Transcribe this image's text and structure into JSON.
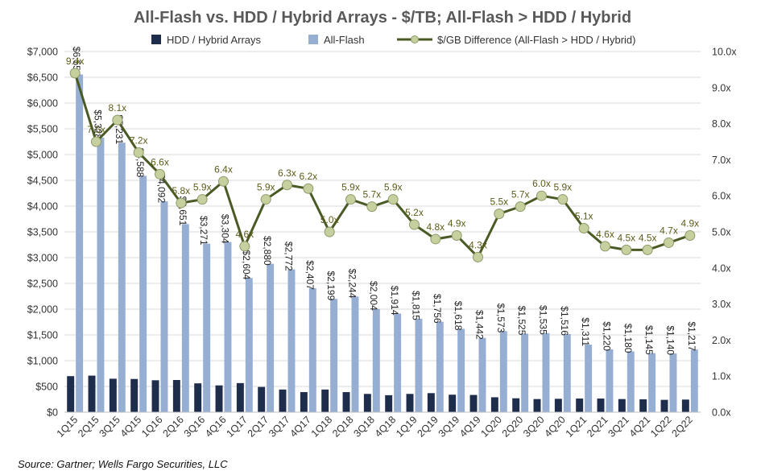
{
  "chart_data": {
    "type": "bar",
    "title": "All-Flash vs. HDD / Hybrid Arrays - $/TB; All-Flash > HDD / Hybrid",
    "source": "Source: Gartner; Wells Fargo Securities, LLC",
    "categories": [
      "1Q15",
      "2Q15",
      "3Q15",
      "4Q15",
      "1Q16",
      "2Q16",
      "3Q16",
      "4Q16",
      "1Q17",
      "2Q17",
      "3Q17",
      "4Q17",
      "1Q18",
      "2Q18",
      "3Q18",
      "4Q18",
      "1Q19",
      "2Q19",
      "3Q19",
      "4Q19",
      "1Q20",
      "2Q20",
      "3Q20",
      "4Q20",
      "1Q21",
      "2Q21",
      "3Q21",
      "4Q21",
      "1Q22",
      "2Q22"
    ],
    "y_left": {
      "min": 0,
      "max": 7000,
      "step": 500,
      "tick_labels": [
        "$0",
        "$500",
        "$1,000",
        "$1,500",
        "$2,000",
        "$2,500",
        "$3,000",
        "$3,500",
        "$4,000",
        "$4,500",
        "$5,000",
        "$5,500",
        "$6,000",
        "$6,500",
        "$7,000"
      ]
    },
    "y_right": {
      "min": 0,
      "max": 10,
      "step": 1,
      "tick_labels": [
        "0.0x",
        "1.0x",
        "2.0x",
        "3.0x",
        "4.0x",
        "5.0x",
        "6.0x",
        "7.0x",
        "8.0x",
        "9.0x",
        "10.0x"
      ]
    },
    "legend_position": "top",
    "series": [
      {
        "name": "HDD / Hybrid Arrays",
        "kind": "bar",
        "axis": "left",
        "color": "#1f2d4d",
        "values": [
          700,
          710,
          650,
          645,
          620,
          625,
          560,
          520,
          565,
          490,
          440,
          390,
          440,
          390,
          355,
          330,
          355,
          370,
          340,
          335,
          290,
          270,
          255,
          260,
          265,
          265,
          255,
          250,
          240,
          245
        ]
      },
      {
        "name": "All-Flash",
        "kind": "bar",
        "axis": "left",
        "color": "#97aed3",
        "values": [
          6555,
          5328,
          5231,
          4588,
          4092,
          3651,
          3271,
          3304,
          2604,
          2880,
          2772,
          2407,
          2199,
          2244,
          2004,
          1914,
          1815,
          1756,
          1618,
          1442,
          1573,
          1525,
          1535,
          1516,
          1311,
          1220,
          1180,
          1145,
          1140,
          1217
        ],
        "labels": [
          "$6,555",
          "$5,328",
          "$5,231",
          "$4,588",
          "$4,092",
          "$3,651",
          "$3,271",
          "$3,304",
          "$2,604",
          "$2,880",
          "$2,772",
          "$2,407",
          "$2,199",
          "$2,244",
          "$2,004",
          "$1,914",
          "$1,815",
          "$1,756",
          "$1,618",
          "$1,442",
          "$1,573",
          "$1,525",
          "$1,535",
          "$1,516",
          "$1,311",
          "$1,220",
          "$1,180",
          "$1,145",
          "$1,140",
          "$1,217"
        ]
      },
      {
        "name": "$/GB Difference (All-Flash > HDD / Hybrid)",
        "kind": "line",
        "axis": "right",
        "color": "#4a5a24",
        "marker_color": "#c5d09e",
        "values": [
          9.4,
          7.5,
          8.1,
          7.2,
          6.6,
          5.8,
          5.9,
          6.4,
          4.6,
          5.9,
          6.3,
          6.2,
          5.0,
          5.9,
          5.7,
          5.9,
          5.2,
          4.8,
          4.9,
          4.3,
          5.5,
          5.7,
          6.0,
          5.9,
          5.1,
          4.6,
          4.5,
          4.5,
          4.7,
          4.9
        ],
        "labels": [
          "9.4x",
          "7.5x",
          "8.1x",
          "7.2x",
          "6.6x",
          "5.8x",
          "5.9x",
          "6.4x",
          "4.6x",
          "5.9x",
          "6.3x",
          "6.2x",
          "5.0x",
          "5.9x",
          "5.7x",
          "5.9x",
          "5.2x",
          "4.8x",
          "4.9x",
          "4.3x",
          "5.5x",
          "5.7x",
          "6.0x",
          "5.9x",
          "5.1x",
          "4.6x",
          "4.5x",
          "4.5x",
          "4.7x",
          "4.9x"
        ]
      }
    ]
  }
}
